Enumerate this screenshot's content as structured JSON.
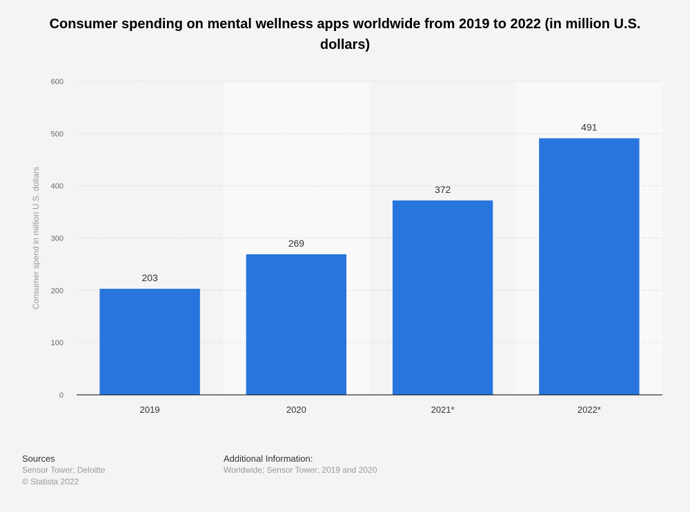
{
  "chart_data": {
    "type": "bar",
    "title": "Consumer spending on mental wellness apps worldwide from 2019 to 2022 (in million U.S. dollars)",
    "xlabel": "",
    "ylabel": "Consumer spend in million U.S. dollars",
    "categories": [
      "2019",
      "2020",
      "2021*",
      "2022*"
    ],
    "values": [
      203,
      269,
      372,
      491
    ],
    "ylim": [
      0,
      600
    ],
    "yticks": [
      0,
      100,
      200,
      300,
      400,
      500,
      600
    ],
    "grid": true,
    "data_labels": true,
    "colors": {
      "bar": "#2876dd",
      "band": "#f9f9f9",
      "background": "#f4f4f4",
      "grid": "#cccccc",
      "axis": "#000000"
    }
  },
  "footer": {
    "sources_label": "Sources",
    "sources_text": "Sensor Tower; Deloitte",
    "copyright": "© Statista 2022",
    "additional_label": "Additional Information:",
    "additional_text": "Worldwide; Sensor Tower; 2019 and 2020"
  }
}
